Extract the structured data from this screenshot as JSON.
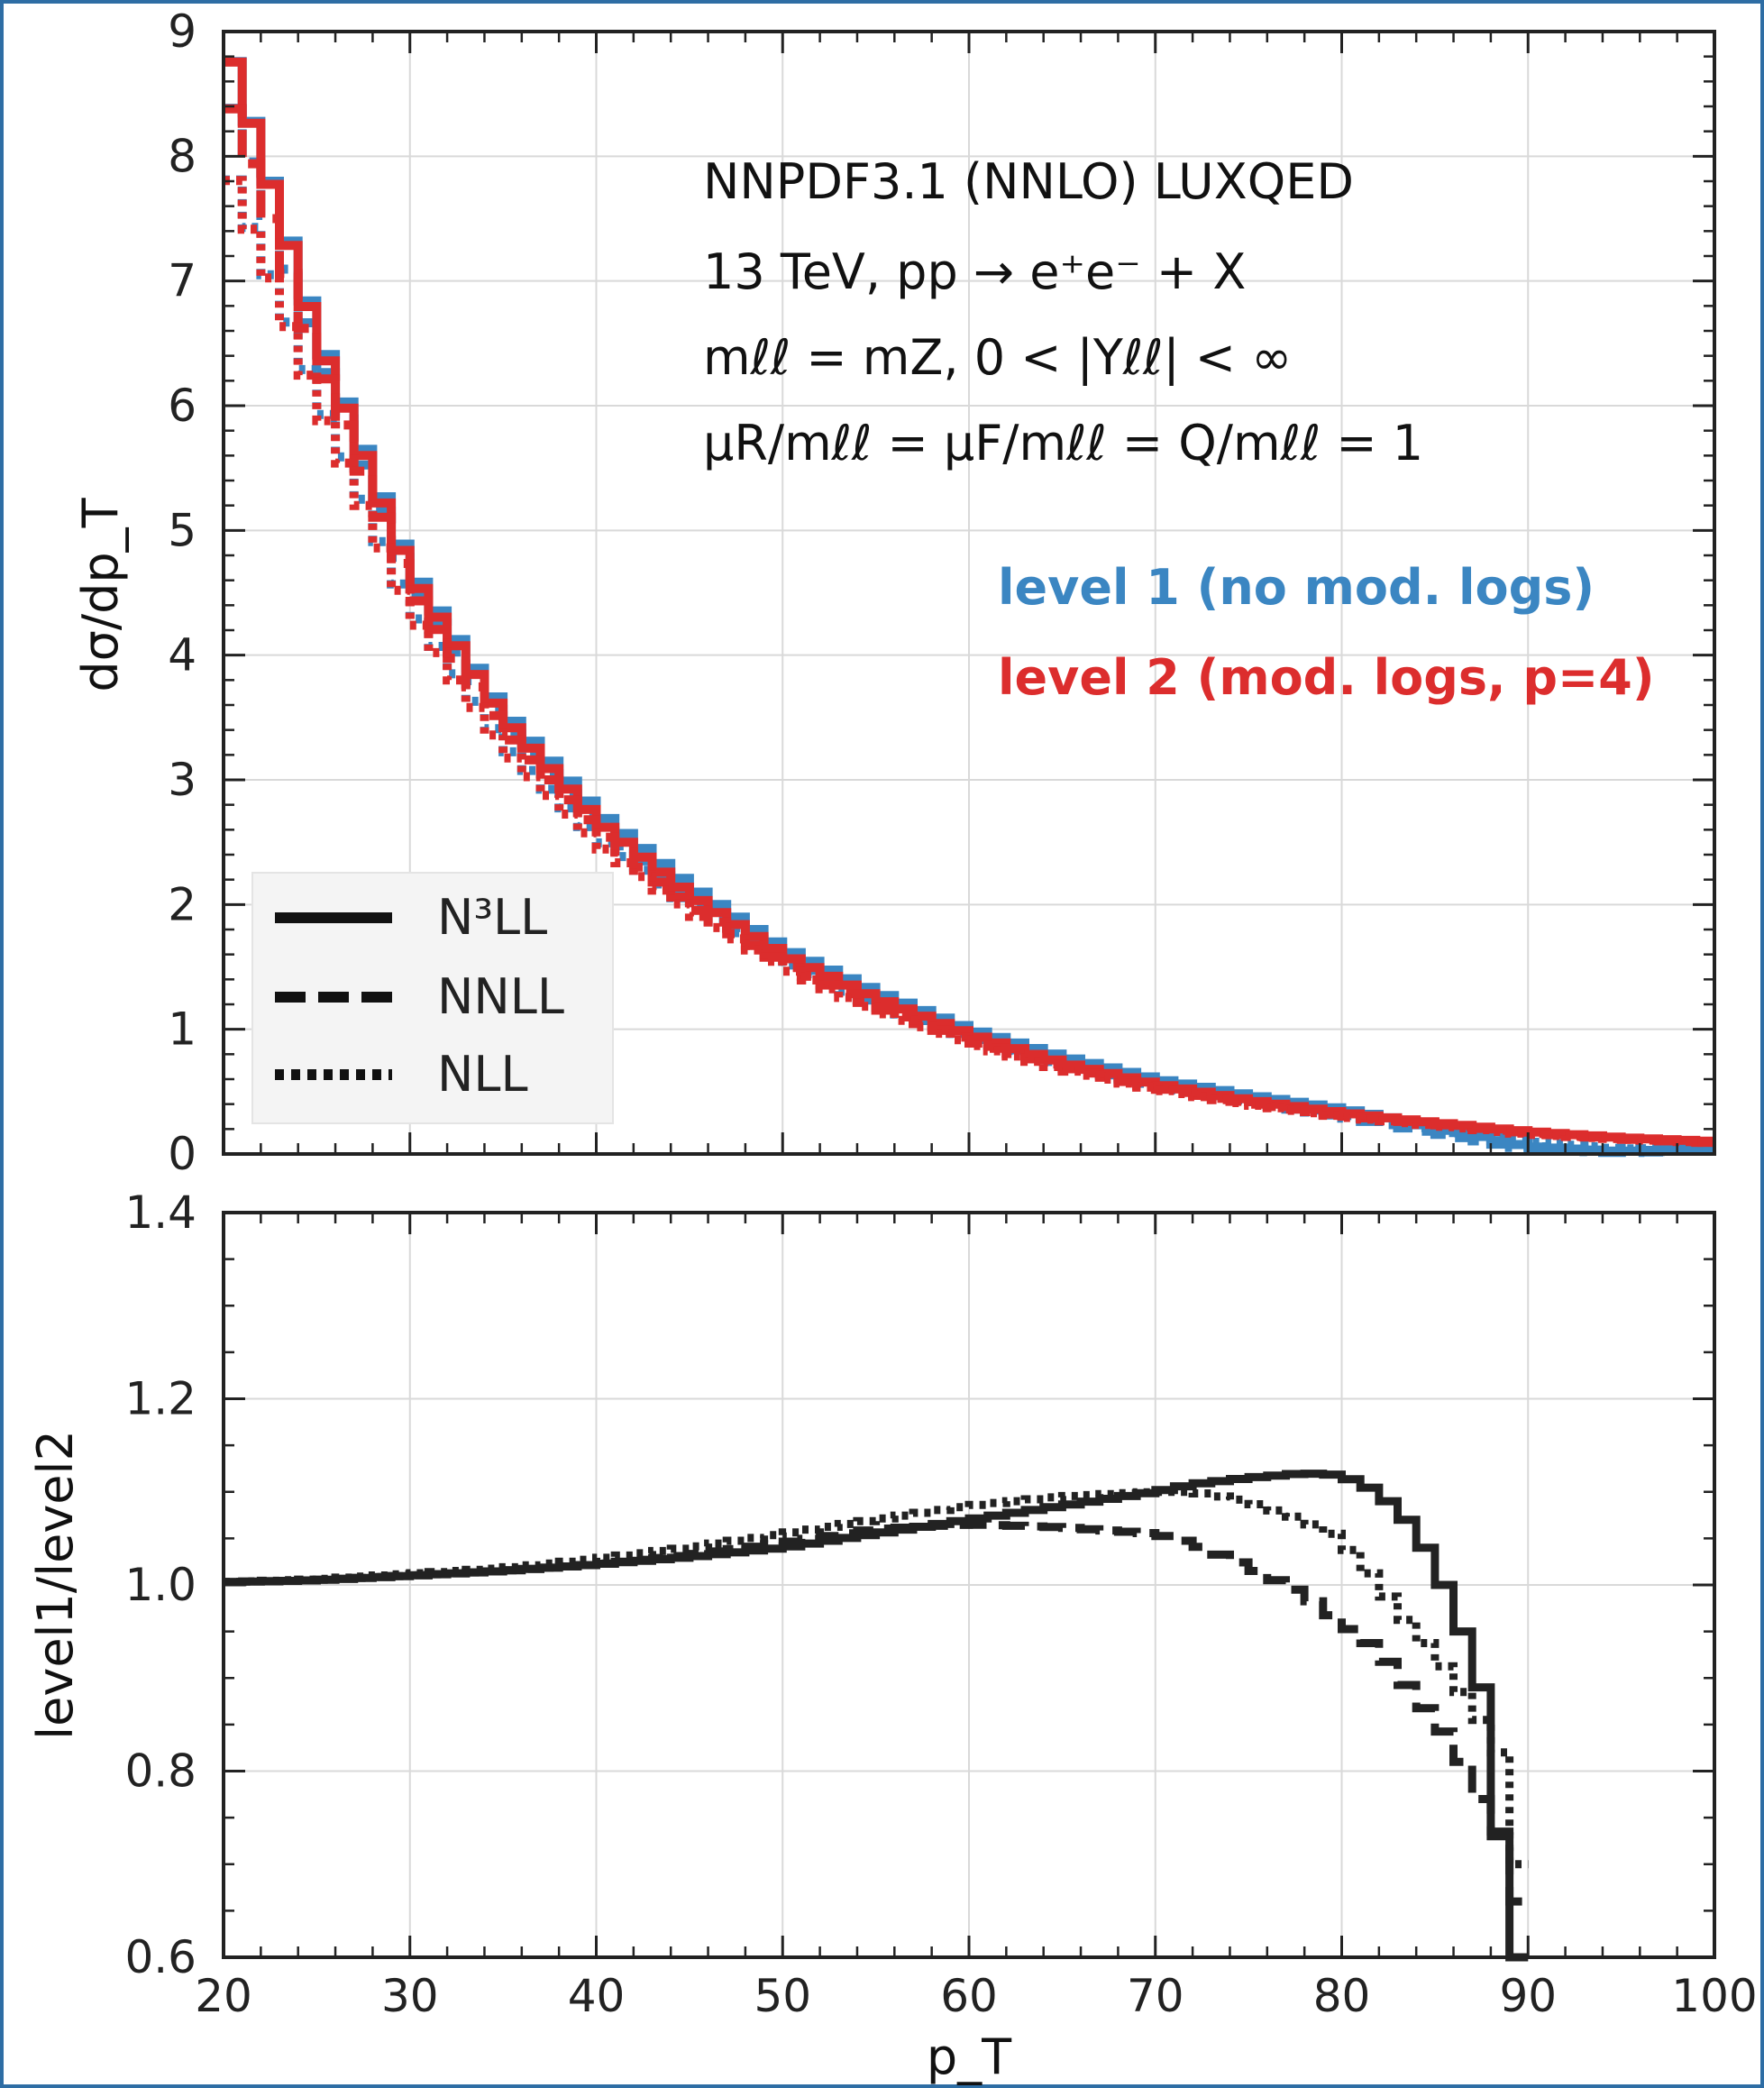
{
  "chart_data": [
    {
      "type": "line",
      "panel": "top",
      "ylabel": "dσ/dp_T",
      "xlim": [
        20,
        100
      ],
      "ylim": [
        0,
        9
      ],
      "yticks": [
        "0",
        "1",
        "2",
        "3",
        "4",
        "5",
        "6",
        "7",
        "8",
        "9"
      ],
      "grid": true,
      "step": true,
      "annotations": {
        "line1": "NNPDF3.1 (NNLO) LUXQED",
        "line2": "13 TeV, pp → e⁺e⁻ + X",
        "line3": "mℓℓ = mZ, 0 < |Yℓℓ| < ∞",
        "line4": "μR/mℓℓ = μF/mℓℓ = Q/mℓℓ = 1"
      },
      "level_labels": [
        {
          "text": "level 1 (no mod. logs)",
          "color": "#3b86c2"
        },
        {
          "text": "level 2 (mod. logs, p=4)",
          "color": "#dc2d2d"
        }
      ],
      "legend": {
        "placement": "bottom-left",
        "entries": [
          {
            "label": "N³LL",
            "style": "solid"
          },
          {
            "label": "NNLL",
            "style": "dashed"
          },
          {
            "label": "NLL",
            "style": "dotted"
          }
        ]
      },
      "x": [
        20,
        25,
        30,
        35,
        40,
        45,
        50,
        55,
        60,
        65,
        70,
        75,
        80,
        85,
        90,
        95,
        100
      ],
      "series": [
        {
          "name": "level 1 (no mod. logs)",
          "order": "N³LL",
          "color": "#3b86c2",
          "style": "solid",
          "values": [
            9.0,
            6.6,
            4.7,
            3.55,
            2.75,
            2.15,
            1.65,
            1.3,
            1.0,
            0.78,
            0.6,
            0.47,
            0.36,
            0.22,
            0.06,
            0.02,
            0.05
          ]
        },
        {
          "name": "level 1 (no mod. logs)",
          "order": "NNLL",
          "color": "#3b86c2",
          "style": "dashed",
          "values": [
            8.6,
            6.45,
            4.6,
            3.45,
            2.65,
            2.05,
            1.58,
            1.22,
            0.95,
            0.72,
            0.55,
            0.42,
            0.3,
            0.17,
            0.04,
            0.01,
            0.03
          ]
        },
        {
          "name": "level 1 (no mod. logs)",
          "order": "NLL",
          "color": "#3b86c2",
          "style": "dotted",
          "values": [
            8.0,
            6.1,
            4.4,
            3.3,
            2.55,
            2.0,
            1.55,
            1.2,
            0.94,
            0.72,
            0.55,
            0.43,
            0.32,
            0.2,
            0.1,
            0.04,
            0.05
          ]
        },
        {
          "name": "level 2 (mod. logs, p=4)",
          "order": "N³LL",
          "color": "#dc2d2d",
          "style": "solid",
          "values": [
            9.0,
            6.55,
            4.65,
            3.5,
            2.68,
            2.08,
            1.6,
            1.25,
            0.96,
            0.73,
            0.56,
            0.43,
            0.33,
            0.25,
            0.18,
            0.13,
            0.1
          ]
        },
        {
          "name": "level 2 (mod. logs, p=4)",
          "order": "NNLL",
          "color": "#dc2d2d",
          "style": "dashed",
          "values": [
            8.6,
            6.4,
            4.55,
            3.4,
            2.6,
            2.0,
            1.53,
            1.18,
            0.91,
            0.7,
            0.53,
            0.41,
            0.31,
            0.24,
            0.17,
            0.12,
            0.09
          ]
        },
        {
          "name": "level 2 (mod. logs, p=4)",
          "order": "NLL",
          "color": "#dc2d2d",
          "style": "dotted",
          "values": [
            8.0,
            6.05,
            4.35,
            3.25,
            2.5,
            1.95,
            1.5,
            1.15,
            0.89,
            0.68,
            0.52,
            0.4,
            0.3,
            0.23,
            0.16,
            0.12,
            0.09
          ]
        }
      ]
    },
    {
      "type": "line",
      "panel": "bottom",
      "xlabel": "p_T",
      "ylabel": "level1/level2",
      "xlim": [
        20,
        100
      ],
      "ylim": [
        0.6,
        1.4
      ],
      "xticks": [
        "20",
        "30",
        "40",
        "50",
        "60",
        "70",
        "80",
        "90",
        "100"
      ],
      "yticks": [
        "0.6",
        "0.8",
        "1.0",
        "1.2",
        "1.4"
      ],
      "grid": true,
      "step": true,
      "x": [
        20,
        25,
        30,
        35,
        40,
        45,
        50,
        55,
        60,
        65,
        70,
        72,
        75,
        78,
        80,
        82,
        84,
        86,
        87,
        88,
        89,
        90
      ],
      "series": [
        {
          "name": "N³LL",
          "style": "solid",
          "color": "#222222",
          "values": [
            1.003,
            1.005,
            1.01,
            1.015,
            1.022,
            1.03,
            1.04,
            1.055,
            1.07,
            1.085,
            1.1,
            1.108,
            1.115,
            1.12,
            1.118,
            1.1,
            1.06,
            0.98,
            0.92,
            0.86,
            0.6,
            0.6
          ]
        },
        {
          "name": "NNLL",
          "style": "dashed",
          "color": "#222222",
          "values": [
            1.003,
            1.005,
            1.01,
            1.015,
            1.022,
            1.032,
            1.045,
            1.06,
            1.065,
            1.062,
            1.055,
            1.045,
            1.02,
            0.99,
            0.96,
            0.93,
            0.88,
            0.83,
            0.79,
            0.75,
            0.72,
            0.6
          ]
        },
        {
          "name": "NLL",
          "style": "dotted",
          "color": "#222222",
          "values": [
            1.003,
            1.006,
            1.012,
            1.018,
            1.028,
            1.04,
            1.055,
            1.07,
            1.085,
            1.095,
            1.1,
            1.1,
            1.09,
            1.07,
            1.05,
            1.0,
            0.95,
            0.9,
            0.87,
            0.84,
            0.8,
            0.6
          ]
        }
      ]
    }
  ]
}
